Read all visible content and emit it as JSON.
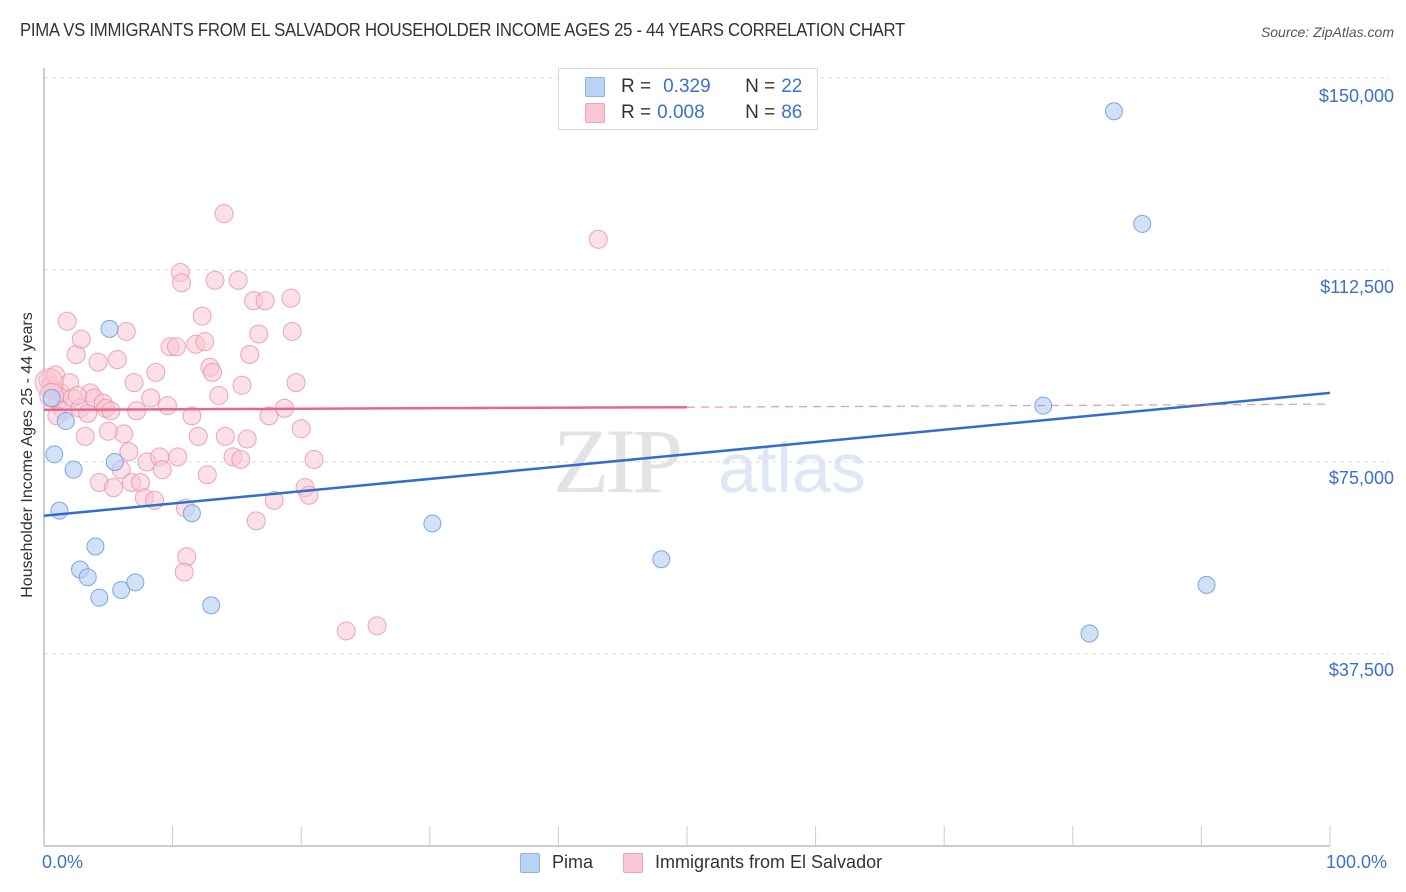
{
  "header": {
    "title": "PIMA VS IMMIGRANTS FROM EL SALVADOR HOUSEHOLDER INCOME AGES 25 - 44 YEARS CORRELATION CHART",
    "source": "Source: ZipAtlas.com"
  },
  "watermark": {
    "zip": "ZIP",
    "atlas": "atlas"
  },
  "legend": {
    "rows": [
      {
        "r_label": "R = ",
        "r_value": "0.329",
        "n_label": "N = ",
        "n_value": "22",
        "color": "#b9d3f5",
        "border": "#8fb3e6"
      },
      {
        "r_label": "R = ",
        "r_value": "0.008",
        "n_label": "N = ",
        "n_value": "86",
        "color": "#f9c6d4",
        "border": "#eea4ba"
      }
    ]
  },
  "axes": {
    "ylabel": "Householder Income Ages 25 - 44 years",
    "yticks": [
      "$150,000",
      "$112,500",
      "$75,000",
      "$37,500"
    ],
    "xticks": [
      "0.0%",
      "100.0%"
    ]
  },
  "bottom_legend": {
    "items": [
      "Pima",
      "Immigrants from El Salvador"
    ]
  },
  "colors": {
    "pima_fill": "#b9d3f5",
    "pima_stroke": "#6f9ee0",
    "pima_line": "#2f6fcf",
    "salv_fill": "#f9c6d4",
    "salv_stroke": "#e890aa",
    "salv_line": "#e5678f",
    "tick_text": "#3a72c8"
  },
  "chart_data": {
    "type": "scatter",
    "title": "PIMA VS IMMIGRANTS FROM EL SALVADOR HOUSEHOLDER INCOME AGES 25 - 44 YEARS CORRELATION CHART",
    "xlabel": "",
    "ylabel": "Householder Income Ages 25 - 44 years",
    "xlim": [
      0,
      100
    ],
    "ylim": [
      0,
      150000
    ],
    "x_ticks": [
      "0.0%",
      "100.0%"
    ],
    "y_ticks": [
      37500,
      75000,
      112500,
      150000
    ],
    "grid": true,
    "legend_position": "top-center and bottom",
    "series": [
      {
        "name": "Pima",
        "R": 0.329,
        "N": 22,
        "trend": {
          "x": [
            0,
            100
          ],
          "y": [
            64500,
            88500
          ],
          "style": "solid"
        },
        "points": [
          [
            0.6,
            87500
          ],
          [
            0.8,
            76500
          ],
          [
            1.2,
            65500
          ],
          [
            1.7,
            83000
          ],
          [
            2.3,
            73500
          ],
          [
            2.8,
            54000
          ],
          [
            3.4,
            52500
          ],
          [
            4.0,
            58500
          ],
          [
            4.3,
            48500
          ],
          [
            5.1,
            101000
          ],
          [
            5.5,
            75000
          ],
          [
            6.0,
            50000
          ],
          [
            7.1,
            51500
          ],
          [
            11.5,
            65000
          ],
          [
            13.0,
            47000
          ],
          [
            30.2,
            63000
          ],
          [
            48.0,
            56000
          ],
          [
            77.7,
            86000
          ],
          [
            83.2,
            143500
          ],
          [
            85.4,
            121500
          ],
          [
            81.3,
            41500
          ],
          [
            90.4,
            51000
          ]
        ]
      },
      {
        "name": "Immigrants from El Salvador",
        "R": 0.008,
        "N": 86,
        "trend": {
          "x": [
            0,
            50,
            100
          ],
          "y": [
            85200,
            85700,
            86300
          ],
          "style": "solid to 50%, dashed beyond"
        },
        "points": [
          [
            0.3,
            91000
          ],
          [
            0.5,
            90000
          ],
          [
            0.7,
            89000
          ],
          [
            0.9,
            92000
          ],
          [
            1.1,
            87000
          ],
          [
            1.3,
            88500
          ],
          [
            1.5,
            85000
          ],
          [
            1.8,
            102500
          ],
          [
            2.0,
            90500
          ],
          [
            2.2,
            87500
          ],
          [
            2.5,
            96000
          ],
          [
            2.8,
            85500
          ],
          [
            2.9,
            99000
          ],
          [
            3.2,
            80000
          ],
          [
            3.4,
            84500
          ],
          [
            3.6,
            88500
          ],
          [
            3.9,
            87500
          ],
          [
            4.2,
            94500
          ],
          [
            4.3,
            71000
          ],
          [
            4.6,
            86500
          ],
          [
            4.8,
            85500
          ],
          [
            5.2,
            85000
          ],
          [
            5.4,
            70000
          ],
          [
            5.7,
            95000
          ],
          [
            6.0,
            73500
          ],
          [
            6.2,
            80500
          ],
          [
            6.4,
            100500
          ],
          [
            6.6,
            77000
          ],
          [
            6.8,
            71000
          ],
          [
            7.0,
            90500
          ],
          [
            7.2,
            85000
          ],
          [
            7.5,
            71000
          ],
          [
            7.8,
            68000
          ],
          [
            8.0,
            75000
          ],
          [
            8.3,
            87500
          ],
          [
            8.6,
            67500
          ],
          [
            8.7,
            92500
          ],
          [
            9.0,
            76000
          ],
          [
            9.2,
            73500
          ],
          [
            9.6,
            86000
          ],
          [
            9.8,
            97500
          ],
          [
            10.3,
            97500
          ],
          [
            10.4,
            76000
          ],
          [
            10.6,
            112000
          ],
          [
            10.7,
            110000
          ],
          [
            11.0,
            66000
          ],
          [
            11.1,
            56500
          ],
          [
            10.9,
            53500
          ],
          [
            11.5,
            84000
          ],
          [
            11.8,
            98000
          ],
          [
            12.0,
            80000
          ],
          [
            12.3,
            103500
          ],
          [
            12.5,
            98500
          ],
          [
            12.9,
            93500
          ],
          [
            13.1,
            92500
          ],
          [
            13.3,
            110500
          ],
          [
            13.6,
            88000
          ],
          [
            14.0,
            123500
          ],
          [
            14.1,
            80000
          ],
          [
            14.7,
            76000
          ],
          [
            15.1,
            110500
          ],
          [
            15.3,
            75500
          ],
          [
            15.4,
            90000
          ],
          [
            15.8,
            79500
          ],
          [
            16.0,
            96000
          ],
          [
            16.3,
            106500
          ],
          [
            16.5,
            63500
          ],
          [
            16.7,
            100000
          ],
          [
            17.2,
            106500
          ],
          [
            17.5,
            84000
          ],
          [
            17.9,
            67500
          ],
          [
            18.7,
            85500
          ],
          [
            19.2,
            107000
          ],
          [
            19.3,
            100500
          ],
          [
            19.6,
            90500
          ],
          [
            20.0,
            81500
          ],
          [
            20.3,
            70000
          ],
          [
            20.6,
            68500
          ],
          [
            21.0,
            75500
          ],
          [
            23.5,
            42000
          ],
          [
            25.9,
            43000
          ],
          [
            43.1,
            118500
          ],
          [
            1.0,
            84000
          ],
          [
            2.6,
            88000
          ],
          [
            5.0,
            81000
          ],
          [
            12.7,
            72500
          ]
        ]
      }
    ]
  }
}
